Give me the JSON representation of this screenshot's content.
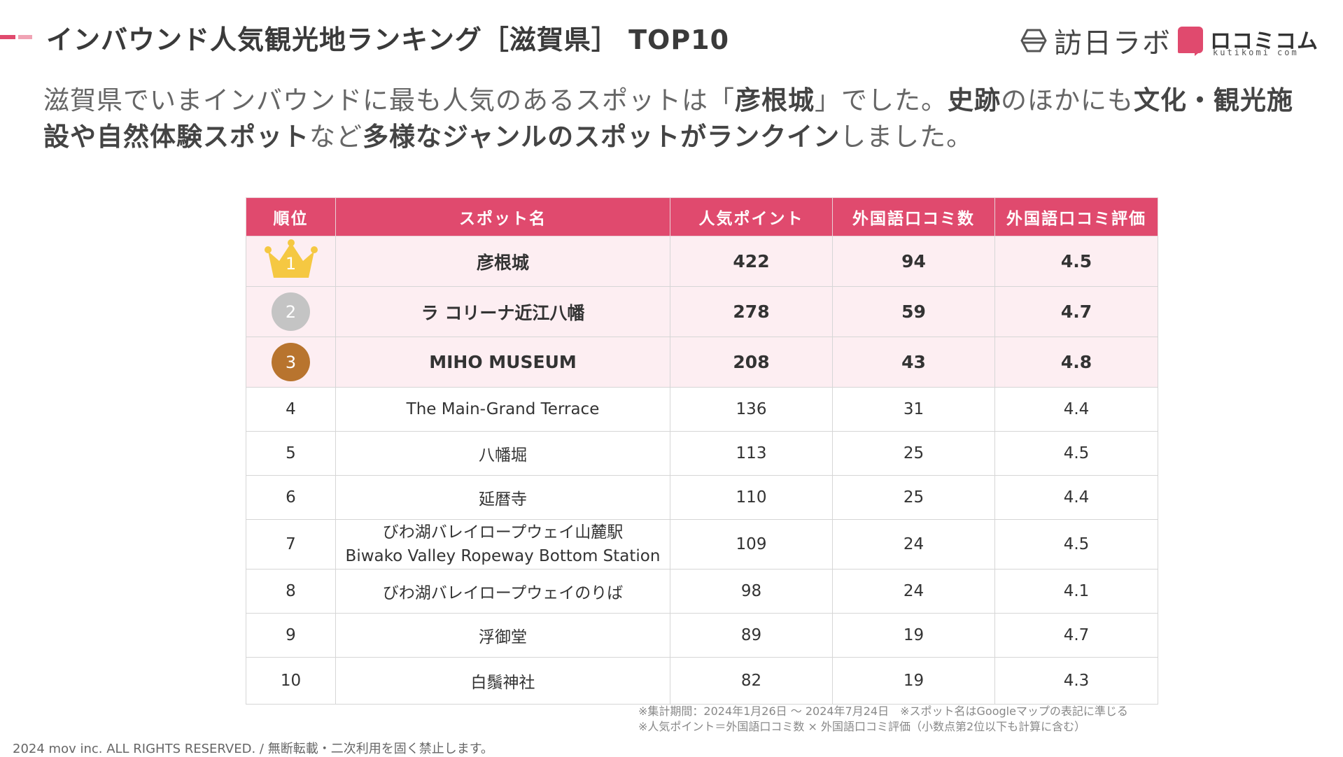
{
  "header": {
    "title": "インバウンド人気観光地ランキング［滋賀県］ TOP10",
    "logo_houni": "訪日ラボ",
    "logo_kuchikomi": "ロコミコム",
    "logo_kuchikomi_sub": "kutikomi com"
  },
  "lead": {
    "p1": "滋賀県でいまインバウンドに最も人気のあるスポットは「",
    "b1": "彦根城",
    "p2": "」でした。",
    "b2": "史跡",
    "p3": "のほかにも",
    "b3": "文化・観光施設や自然体験スポット",
    "p4": "など",
    "b4": "多様なジャンルのスポットがランクイン",
    "p5": "しました。"
  },
  "table": {
    "headers": [
      "順位",
      "スポット名",
      "人気ポイント",
      "外国語口コミ数",
      "外国語口コミ評価"
    ],
    "rows": [
      {
        "rank": "1",
        "name": "彦根城",
        "points": "422",
        "reviews": "94",
        "rating": "4.5"
      },
      {
        "rank": "2",
        "name": "ラ コリーナ近江八幡",
        "points": "278",
        "reviews": "59",
        "rating": "4.7"
      },
      {
        "rank": "3",
        "name": "MIHO MUSEUM",
        "points": "208",
        "reviews": "43",
        "rating": "4.8"
      },
      {
        "rank": "4",
        "name": "The Main-Grand Terrace",
        "points": "136",
        "reviews": "31",
        "rating": "4.4"
      },
      {
        "rank": "5",
        "name": "八幡堀",
        "points": "113",
        "reviews": "25",
        "rating": "4.5"
      },
      {
        "rank": "6",
        "name": "延暦寺",
        "points": "110",
        "reviews": "25",
        "rating": "4.4"
      },
      {
        "rank": "7",
        "name": "びわ湖バレイロープウェイ山麓駅",
        "name2": "Biwako Valley Ropeway Bottom Station",
        "points": "109",
        "reviews": "24",
        "rating": "4.5"
      },
      {
        "rank": "8",
        "name": "びわ湖バレイロープウェイのりば",
        "points": "98",
        "reviews": "24",
        "rating": "4.1"
      },
      {
        "rank": "9",
        "name": "浮御堂",
        "points": "89",
        "reviews": "19",
        "rating": "4.7"
      },
      {
        "rank": "10",
        "name": "白鬚神社",
        "points": "82",
        "reviews": "19",
        "rating": "4.3"
      }
    ]
  },
  "colors": {
    "accent": "#e04a6e",
    "gold": "#f5c842",
    "silver": "#c4c4c4",
    "bronze": "#b8742e"
  },
  "notes": {
    "line1": "※集計期間：2024年1月26日 〜 2024年7月24日　※スポット名はGoogleマップの表記に準じる",
    "line2": "※人気ポイント＝外国語口コミ数 × 外国語口コミ評価（小数点第2位以下も計算に含む）"
  },
  "footer": {
    "copyright": "2024 mov inc. ALL RIGHTS RESERVED. / 無断転載・二次利用を固く禁止します。"
  }
}
